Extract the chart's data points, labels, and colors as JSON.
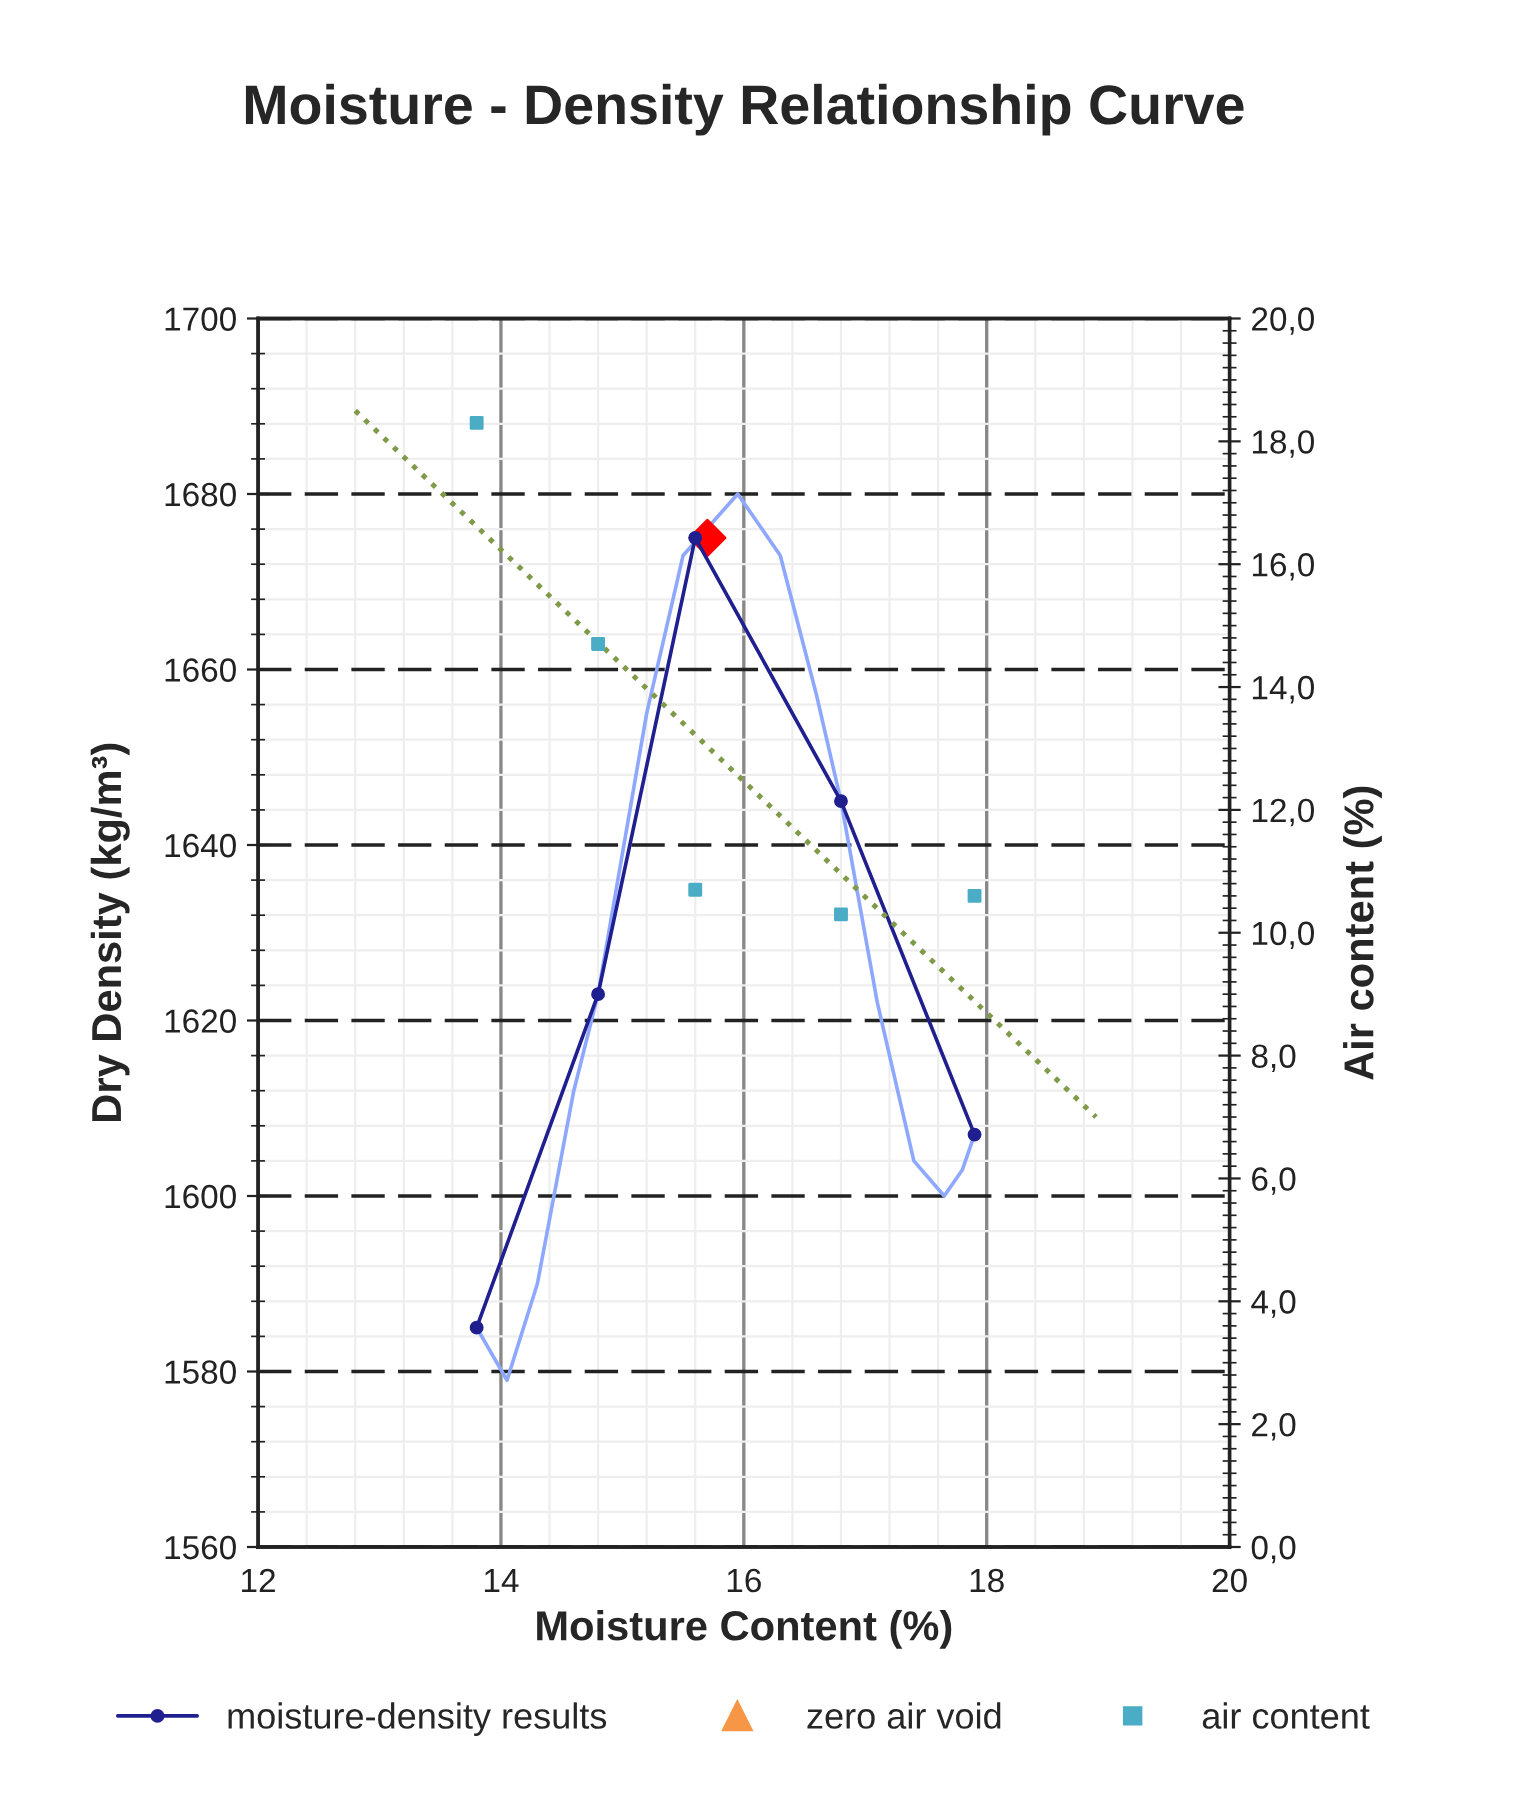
{
  "chart_data": {
    "type": "line",
    "title": "Moisture - Density Relationship Curve",
    "xlabel": "Moisture Content (%)",
    "ylabel": "Dry Density (kg/m³)",
    "y2label": "Air content (%)",
    "xlim": [
      12,
      20
    ],
    "xticks": [
      12,
      14,
      16,
      18,
      20
    ],
    "ylim": [
      1560,
      1700
    ],
    "yticks": [
      1560,
      1580,
      1600,
      1620,
      1640,
      1660,
      1680,
      1700
    ],
    "y2lim": [
      0,
      20
    ],
    "y2ticks": [
      {
        "value": 0,
        "label": "0,0"
      },
      {
        "value": 2,
        "label": "2,0"
      },
      {
        "value": 4,
        "label": "4,0"
      },
      {
        "value": 6,
        "label": "6,0"
      },
      {
        "value": 8,
        "label": "8,0"
      },
      {
        "value": 10,
        "label": "10,0"
      },
      {
        "value": 12,
        "label": "12,0"
      },
      {
        "value": 14,
        "label": "14,0"
      },
      {
        "value": 16,
        "label": "16,0"
      },
      {
        "value": 18,
        "label": "18,0"
      },
      {
        "value": 20,
        "label": "20,0"
      }
    ],
    "grid": true,
    "legend": "bottom",
    "series": [
      {
        "color": "#8fa8ff",
        "marker": "none",
        "x": [
          13.8,
          14.05,
          14.3,
          14.6,
          14.8,
          15.2,
          15.5,
          15.95,
          16.3,
          16.6,
          16.8,
          17.1,
          17.4,
          17.65,
          17.8,
          17.9
        ],
        "values": [
          1585,
          1579,
          1590,
          1612,
          1623,
          1655,
          1673,
          1680,
          1673,
          1657,
          1645,
          1622,
          1604,
          1600,
          1603,
          1607
        ]
      },
      {
        "name": "moisture-density results",
        "color": "#1f1f8f",
        "marker": "circle",
        "x": [
          13.8,
          14.8,
          15.6,
          16.8,
          17.9
        ],
        "values": [
          1585,
          1623,
          1675,
          1645,
          1607
        ]
      },
      {
        "type": "scatter",
        "color": "#ff0000",
        "marker": "diamond",
        "x": [
          15.7
        ],
        "values": [
          1675
        ]
      },
      {
        "type": "scatter",
        "name": "zero air void",
        "color": "#f79646",
        "marker": "triangle"
      },
      {
        "type": "scatter",
        "name": "air content",
        "color": "#4bacc6",
        "marker": "square",
        "axis": "y2",
        "x": [
          13.8,
          14.8,
          15.6,
          16.8,
          17.9
        ],
        "values": [
          18.3,
          14.7,
          10.7,
          10.3,
          10.6
        ]
      },
      {
        "color": "#7f9a48",
        "marker": "none",
        "line_style": "dotted",
        "axis": "y2",
        "x": [
          12.8,
          18.9
        ],
        "values": [
          18.5,
          7.0
        ]
      }
    ]
  }
}
